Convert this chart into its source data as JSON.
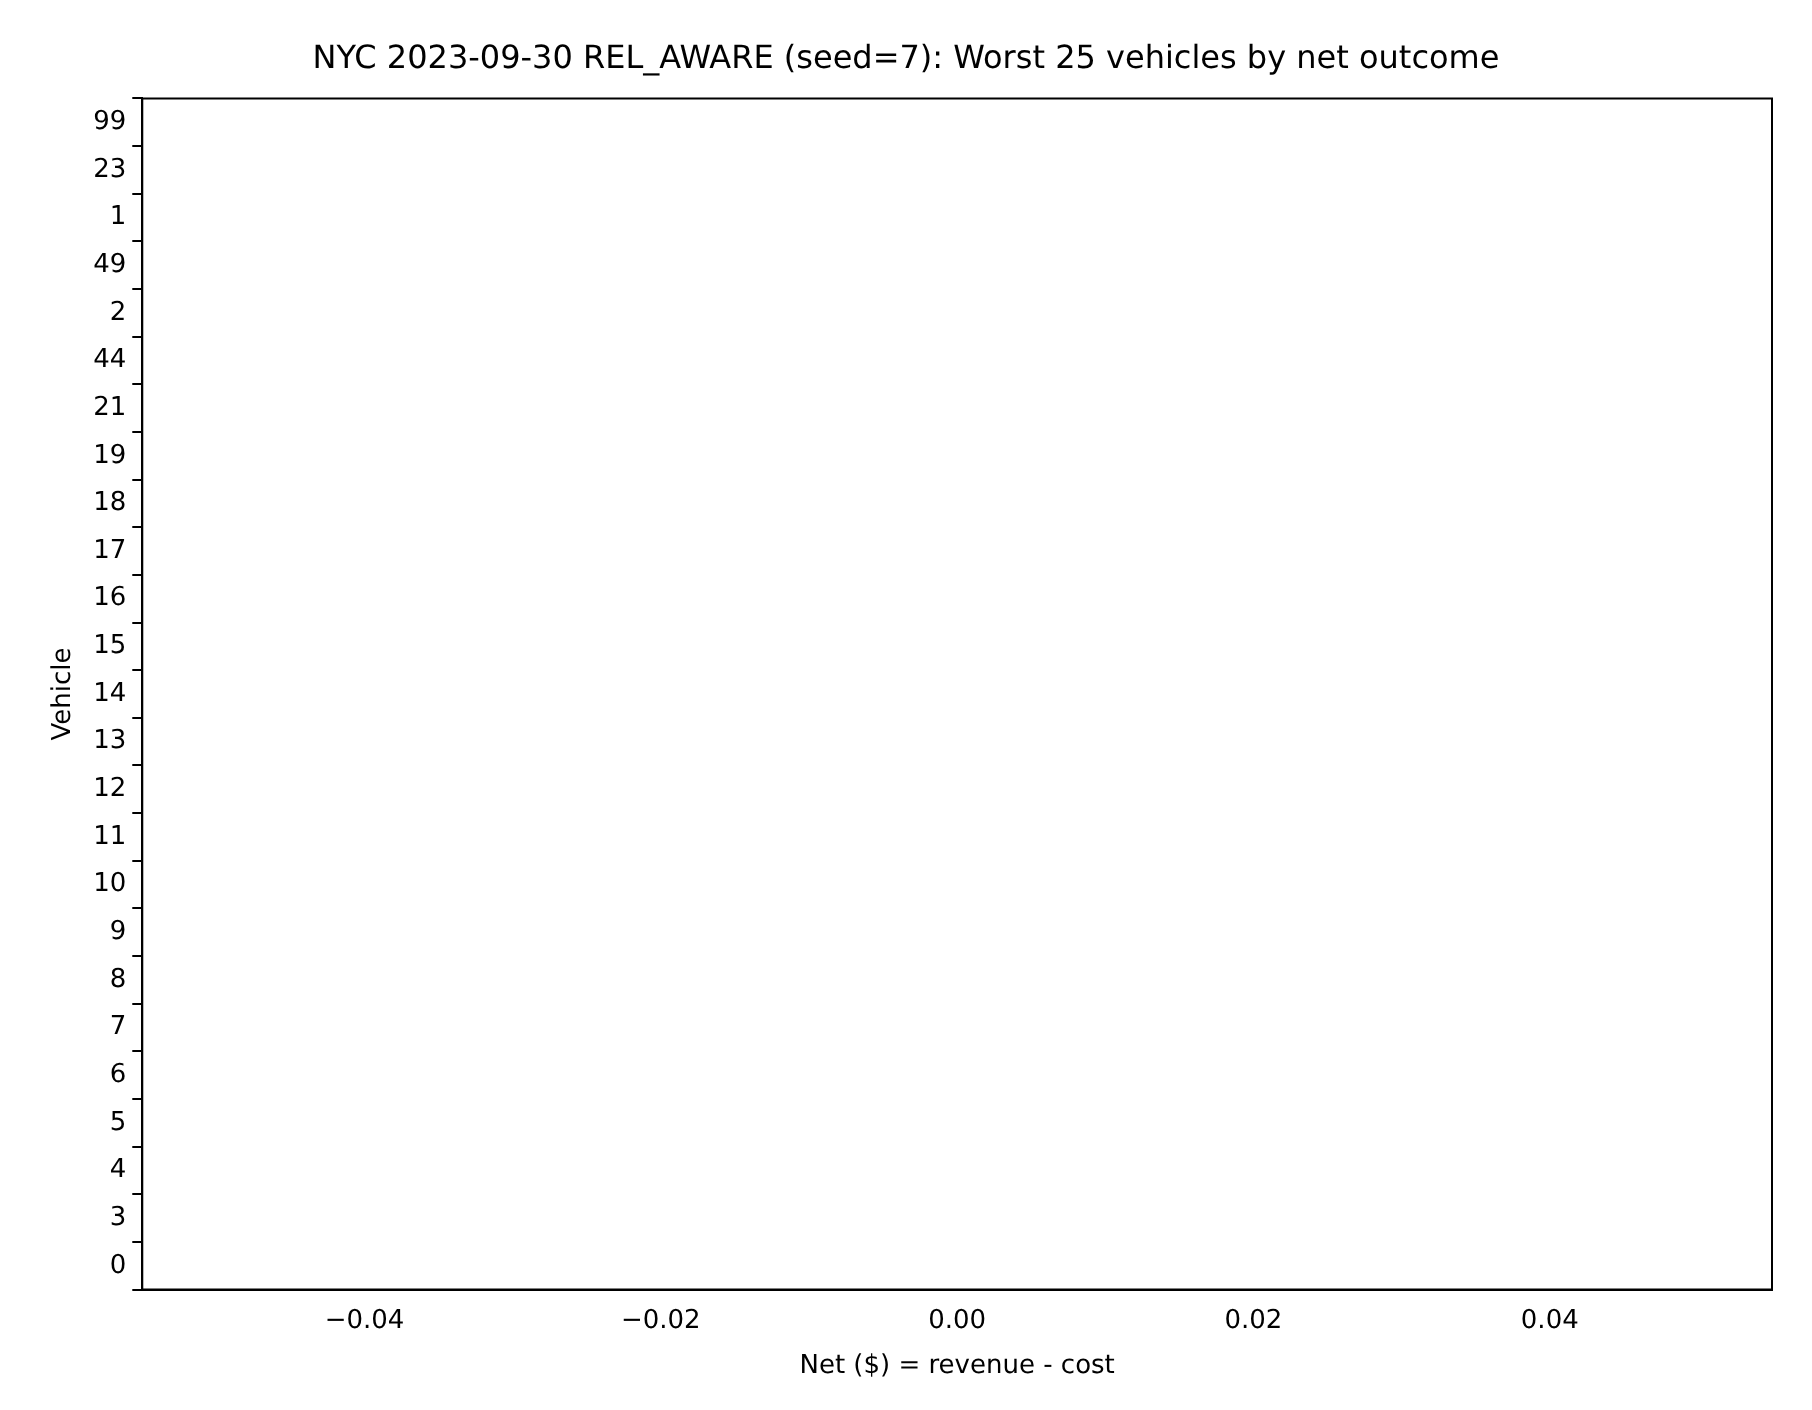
{
  "chart_data": {
    "type": "bar",
    "orientation": "horizontal",
    "title": "NYC 2023-09-30 REL_AWARE (seed=7): Worst 25 vehicles by net outcome",
    "xlabel": "Net ($) = revenue - cost",
    "ylabel": "Vehicle",
    "categories": [
      "99",
      "23",
      "1",
      "49",
      "2",
      "44",
      "21",
      "19",
      "18",
      "17",
      "16",
      "15",
      "14",
      "13",
      "12",
      "11",
      "10",
      "9",
      "8",
      "7",
      "6",
      "5",
      "4",
      "3",
      "0"
    ],
    "values": [
      0,
      0,
      0,
      0,
      0,
      0,
      0,
      0,
      0,
      0,
      0,
      0,
      0,
      0,
      0,
      0,
      0,
      0,
      0,
      0,
      0,
      0,
      0,
      0,
      0
    ],
    "xlim": [
      -0.055,
      0.055
    ],
    "xticks": [
      {
        "value": -0.04,
        "label": "−0.04"
      },
      {
        "value": -0.02,
        "label": "−0.02"
      },
      {
        "value": 0,
        "label": "0.00"
      },
      {
        "value": 0.02,
        "label": "0.02"
      },
      {
        "value": 0.04,
        "label": "0.04"
      }
    ],
    "grid": false,
    "legend": false
  }
}
